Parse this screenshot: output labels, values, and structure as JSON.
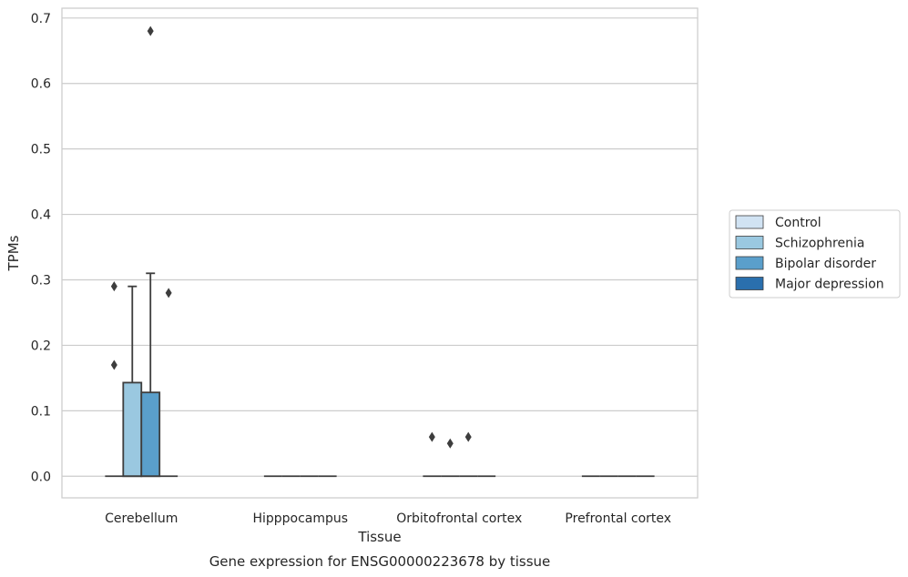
{
  "chart_data": {
    "type": "boxplot",
    "title": "",
    "xlabel": "Tissue",
    "ylabel": "TPMs",
    "caption": "Gene expression for ENSG00000223678 by tissue",
    "ylim": [
      -0.033,
      0.715
    ],
    "yticks": [
      0.0,
      0.1,
      0.2,
      0.3,
      0.4,
      0.5,
      0.6,
      0.7
    ],
    "ytick_labels": [
      "0.0",
      "0.1",
      "0.2",
      "0.3",
      "0.4",
      "0.5",
      "0.6",
      "0.7"
    ],
    "grid": "horizontal",
    "legend_placement": "right",
    "categories": [
      "Cerebellum",
      "Hipppocampus",
      "Orbitofrontal cortex",
      "Prefrontal cortex"
    ],
    "series": [
      {
        "name": "Control",
        "color": "#d1e3f3",
        "boxes": [
          {
            "q1": 0.0,
            "median": 0.0,
            "q3": 0.0,
            "whisker_low": 0.0,
            "whisker_high": 0.0,
            "outliers": [
              0.17,
              0.29
            ]
          },
          {
            "q1": 0.0,
            "median": 0.0,
            "q3": 0.0,
            "whisker_low": 0.0,
            "whisker_high": 0.0,
            "outliers": []
          },
          {
            "q1": 0.0,
            "median": 0.0,
            "q3": 0.0,
            "whisker_low": 0.0,
            "whisker_high": 0.0,
            "outliers": [
              0.06
            ]
          },
          {
            "q1": 0.0,
            "median": 0.0,
            "q3": 0.0,
            "whisker_low": 0.0,
            "whisker_high": 0.0,
            "outliers": []
          }
        ]
      },
      {
        "name": "Schizophrenia",
        "color": "#9ac8e0",
        "boxes": [
          {
            "q1": 0.0,
            "median": 0.0,
            "q3": 0.143,
            "whisker_low": 0.0,
            "whisker_high": 0.29,
            "outliers": []
          },
          {
            "q1": 0.0,
            "median": 0.0,
            "q3": 0.0,
            "whisker_low": 0.0,
            "whisker_high": 0.0,
            "outliers": []
          },
          {
            "q1": 0.0,
            "median": 0.0,
            "q3": 0.0,
            "whisker_low": 0.0,
            "whisker_high": 0.0,
            "outliers": [
              0.05
            ]
          },
          {
            "q1": 0.0,
            "median": 0.0,
            "q3": 0.0,
            "whisker_low": 0.0,
            "whisker_high": 0.0,
            "outliers": []
          }
        ]
      },
      {
        "name": "Bipolar disorder",
        "color": "#5a9fcb",
        "boxes": [
          {
            "q1": 0.0,
            "median": 0.0,
            "q3": 0.128,
            "whisker_low": 0.0,
            "whisker_high": 0.31,
            "outliers": [
              0.68
            ]
          },
          {
            "q1": 0.0,
            "median": 0.0,
            "q3": 0.0,
            "whisker_low": 0.0,
            "whisker_high": 0.0,
            "outliers": []
          },
          {
            "q1": 0.0,
            "median": 0.0,
            "q3": 0.0,
            "whisker_low": 0.0,
            "whisker_high": 0.0,
            "outliers": [
              0.06
            ]
          },
          {
            "q1": 0.0,
            "median": 0.0,
            "q3": 0.0,
            "whisker_low": 0.0,
            "whisker_high": 0.0,
            "outliers": []
          }
        ]
      },
      {
        "name": "Major depression",
        "color": "#2a6fad",
        "boxes": [
          {
            "q1": 0.0,
            "median": 0.0,
            "q3": 0.0,
            "whisker_low": 0.0,
            "whisker_high": 0.0,
            "outliers": [
              0.28
            ]
          },
          {
            "q1": 0.0,
            "median": 0.0,
            "q3": 0.0,
            "whisker_low": 0.0,
            "whisker_high": 0.0,
            "outliers": []
          },
          {
            "q1": 0.0,
            "median": 0.0,
            "q3": 0.0,
            "whisker_low": 0.0,
            "whisker_high": 0.0,
            "outliers": []
          },
          {
            "q1": 0.0,
            "median": 0.0,
            "q3": 0.0,
            "whisker_low": 0.0,
            "whisker_high": 0.0,
            "outliers": []
          }
        ]
      }
    ]
  }
}
